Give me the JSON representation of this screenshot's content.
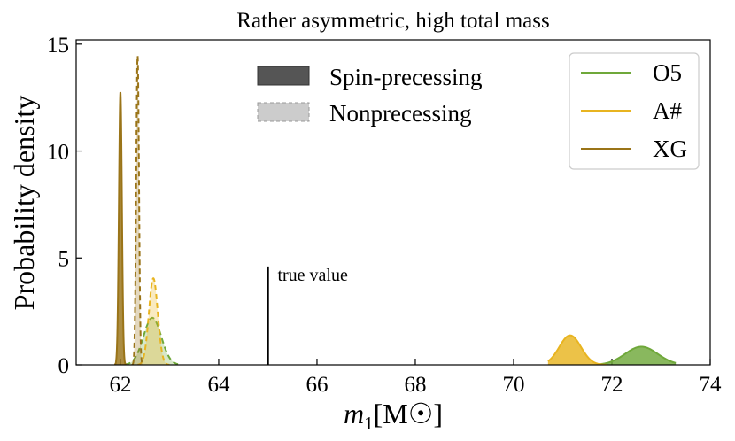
{
  "chart_data": {
    "type": "area",
    "title": "Rather asymmetric, high total mass",
    "xlabel_main": "m",
    "xlabel_sub": "1",
    "xlabel_unit": "[M☉]",
    "ylabel": "Probability density",
    "xlim": [
      61.1,
      74
    ],
    "ylim": [
      0,
      15.2
    ],
    "xticks": [
      62,
      64,
      66,
      68,
      70,
      72,
      74
    ],
    "yticks": [
      0,
      5,
      10,
      15
    ],
    "colors": {
      "O5": "#6fa83a",
      "A#": "#e8b420",
      "XG": "#9a7418"
    },
    "legend_detectors": {
      "position": "top-right",
      "entries": [
        "O5",
        "A#",
        "XG"
      ]
    },
    "legend_styles": {
      "position": "top-center",
      "entries": [
        "Spin-precessing",
        "Nonprecessing"
      ]
    },
    "annotation": {
      "text": "true value",
      "x": 65.0,
      "y_top": 4.6
    },
    "series": [
      {
        "name": "O5",
        "style": "Spin-precessing",
        "mean": 72.6,
        "sigma": 0.33,
        "peak": 0.85,
        "range": [
          71.7,
          73.3
        ]
      },
      {
        "name": "A#",
        "style": "Spin-precessing",
        "mean": 71.15,
        "sigma": 0.22,
        "peak": 1.38,
        "range": [
          70.7,
          71.9
        ]
      },
      {
        "name": "XG",
        "style": "Spin-precessing",
        "mean": 62.0,
        "sigma": 0.03,
        "peak": 12.75,
        "range": [
          61.88,
          62.12
        ]
      },
      {
        "name": "O5",
        "style": "Nonprecessing",
        "mean": 62.65,
        "sigma": 0.18,
        "peak": 2.2,
        "range": [
          62.1,
          63.2
        ]
      },
      {
        "name": "A#",
        "style": "Nonprecessing",
        "mean": 62.67,
        "sigma": 0.09,
        "peak": 4.05,
        "range": [
          62.35,
          63.0
        ]
      },
      {
        "name": "XG",
        "style": "Nonprecessing",
        "mean": 62.35,
        "sigma": 0.028,
        "peak": 14.45,
        "range": [
          62.23,
          62.47
        ]
      }
    ]
  }
}
